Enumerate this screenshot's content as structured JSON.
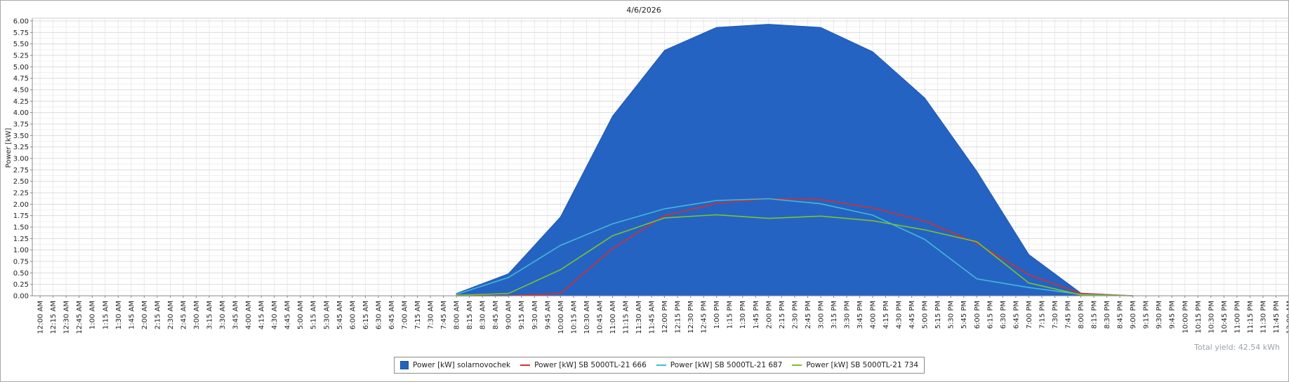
{
  "chart_data": {
    "type": "area",
    "title": "4/6/2026",
    "ylabel": "Power [kW]",
    "xlabel": "",
    "ylim": [
      0,
      6.0
    ],
    "yticks": [
      "0.00",
      "0.25",
      "0.50",
      "0.75",
      "1.00",
      "1.25",
      "1.50",
      "1.75",
      "2.00",
      "2.25",
      "2.50",
      "2.75",
      "3.00",
      "3.25",
      "3.50",
      "3.75",
      "4.00",
      "4.25",
      "4.50",
      "4.75",
      "5.00",
      "5.25",
      "5.50",
      "5.75",
      "6.00"
    ],
    "grid": true,
    "legend_placement": "bottom",
    "categories": [
      "12:00 AM",
      "12:15 AM",
      "12:30 AM",
      "12:45 AM",
      "1:00 AM",
      "1:15 AM",
      "1:30 AM",
      "1:45 AM",
      "2:00 AM",
      "2:15 AM",
      "2:30 AM",
      "2:45 AM",
      "3:00 AM",
      "3:15 AM",
      "3:30 AM",
      "3:45 AM",
      "4:00 AM",
      "4:15 AM",
      "4:30 AM",
      "4:45 AM",
      "5:00 AM",
      "5:15 AM",
      "5:30 AM",
      "5:45 AM",
      "6:00 AM",
      "6:15 AM",
      "6:30 AM",
      "6:45 AM",
      "7:00 AM",
      "7:15 AM",
      "7:30 AM",
      "7:45 AM",
      "8:00 AM",
      "8:15 AM",
      "8:30 AM",
      "8:45 AM",
      "9:00 AM",
      "9:15 AM",
      "9:30 AM",
      "9:45 AM",
      "10:00 AM",
      "10:15 AM",
      "10:30 AM",
      "10:45 AM",
      "11:00 AM",
      "11:15 AM",
      "11:30 AM",
      "11:45 AM",
      "12:00 PM",
      "12:15 PM",
      "12:30 PM",
      "12:45 PM",
      "1:00 PM",
      "1:15 PM",
      "1:30 PM",
      "1:45 PM",
      "2:00 PM",
      "2:15 PM",
      "2:30 PM",
      "2:45 PM",
      "3:00 PM",
      "3:15 PM",
      "3:30 PM",
      "3:45 PM",
      "4:00 PM",
      "4:15 PM",
      "4:30 PM",
      "4:45 PM",
      "5:00 PM",
      "5:15 PM",
      "5:30 PM",
      "5:45 PM",
      "6:00 PM",
      "6:15 PM",
      "6:30 PM",
      "6:45 PM",
      "7:00 PM",
      "7:15 PM",
      "7:30 PM",
      "7:45 PM",
      "8:00 PM",
      "8:15 PM",
      "8:30 PM",
      "8:45 PM",
      "9:00 PM",
      "9:15 PM",
      "9:30 PM",
      "9:45 PM",
      "10:00 PM",
      "10:15 PM",
      "10:30 PM",
      "10:45 PM",
      "11:00 PM",
      "11:15 PM",
      "11:30 PM",
      "11:45 PM",
      "12:00 AM"
    ],
    "series": [
      {
        "name": "Power [kW] solarnovochek",
        "kind": "area",
        "color": "#2563c2",
        "points": [
          [
            "8:00 AM",
            0.05
          ],
          [
            "9:00 AM",
            0.48
          ],
          [
            "10:00 AM",
            1.72
          ],
          [
            "11:00 AM",
            3.92
          ],
          [
            "12:00 PM",
            5.36
          ],
          [
            "1:00 PM",
            5.86
          ],
          [
            "2:00 PM",
            5.93
          ],
          [
            "3:00 PM",
            5.86
          ],
          [
            "4:00 PM",
            5.33
          ],
          [
            "5:00 PM",
            4.32
          ],
          [
            "6:00 PM",
            2.72
          ],
          [
            "7:00 PM",
            0.9
          ],
          [
            "8:00 PM",
            0.06
          ],
          [
            "9:00 PM",
            0.0
          ]
        ]
      },
      {
        "name": "Power [kW] SB 5000TL-21 666",
        "kind": "line",
        "color": "#d32f2f",
        "points": [
          [
            "8:00 AM",
            0.0
          ],
          [
            "9:00 AM",
            0.0
          ],
          [
            "10:00 AM",
            0.05
          ],
          [
            "11:00 AM",
            1.03
          ],
          [
            "12:00 PM",
            1.75
          ],
          [
            "1:00 PM",
            2.02
          ],
          [
            "2:00 PM",
            2.12
          ],
          [
            "3:00 PM",
            2.1
          ],
          [
            "4:00 PM",
            1.92
          ],
          [
            "5:00 PM",
            1.63
          ],
          [
            "6:00 PM",
            1.15
          ],
          [
            "7:00 PM",
            0.46
          ],
          [
            "8:00 PM",
            0.05
          ],
          [
            "9:00 PM",
            0.0
          ]
        ]
      },
      {
        "name": "Power [kW] SB 5000TL-21 687",
        "kind": "line",
        "color": "#41b8d8",
        "points": [
          [
            "8:00 AM",
            0.03
          ],
          [
            "9:00 AM",
            0.4
          ],
          [
            "10:00 AM",
            1.1
          ],
          [
            "11:00 AM",
            1.57
          ],
          [
            "12:00 PM",
            1.9
          ],
          [
            "1:00 PM",
            2.08
          ],
          [
            "2:00 PM",
            2.12
          ],
          [
            "3:00 PM",
            2.01
          ],
          [
            "4:00 PM",
            1.76
          ],
          [
            "5:00 PM",
            1.23
          ],
          [
            "6:00 PM",
            0.37
          ],
          [
            "7:00 PM",
            0.18
          ],
          [
            "8:00 PM",
            0.03
          ],
          [
            "9:00 PM",
            0.0
          ]
        ]
      },
      {
        "name": "Power [kW] SB 5000TL-21 734",
        "kind": "line",
        "color": "#7cc22e",
        "points": [
          [
            "8:00 AM",
            0.01
          ],
          [
            "9:00 AM",
            0.05
          ],
          [
            "10:00 AM",
            0.57
          ],
          [
            "11:00 AM",
            1.31
          ],
          [
            "12:00 PM",
            1.7
          ],
          [
            "1:00 PM",
            1.77
          ],
          [
            "2:00 PM",
            1.69
          ],
          [
            "3:00 PM",
            1.74
          ],
          [
            "4:00 PM",
            1.64
          ],
          [
            "5:00 PM",
            1.44
          ],
          [
            "6:00 PM",
            1.18
          ],
          [
            "7:00 PM",
            0.28
          ],
          [
            "8:00 PM",
            0.02
          ],
          [
            "9:00 PM",
            0.0
          ]
        ]
      }
    ],
    "annotation": "Total yield: 42.54 kWh"
  }
}
